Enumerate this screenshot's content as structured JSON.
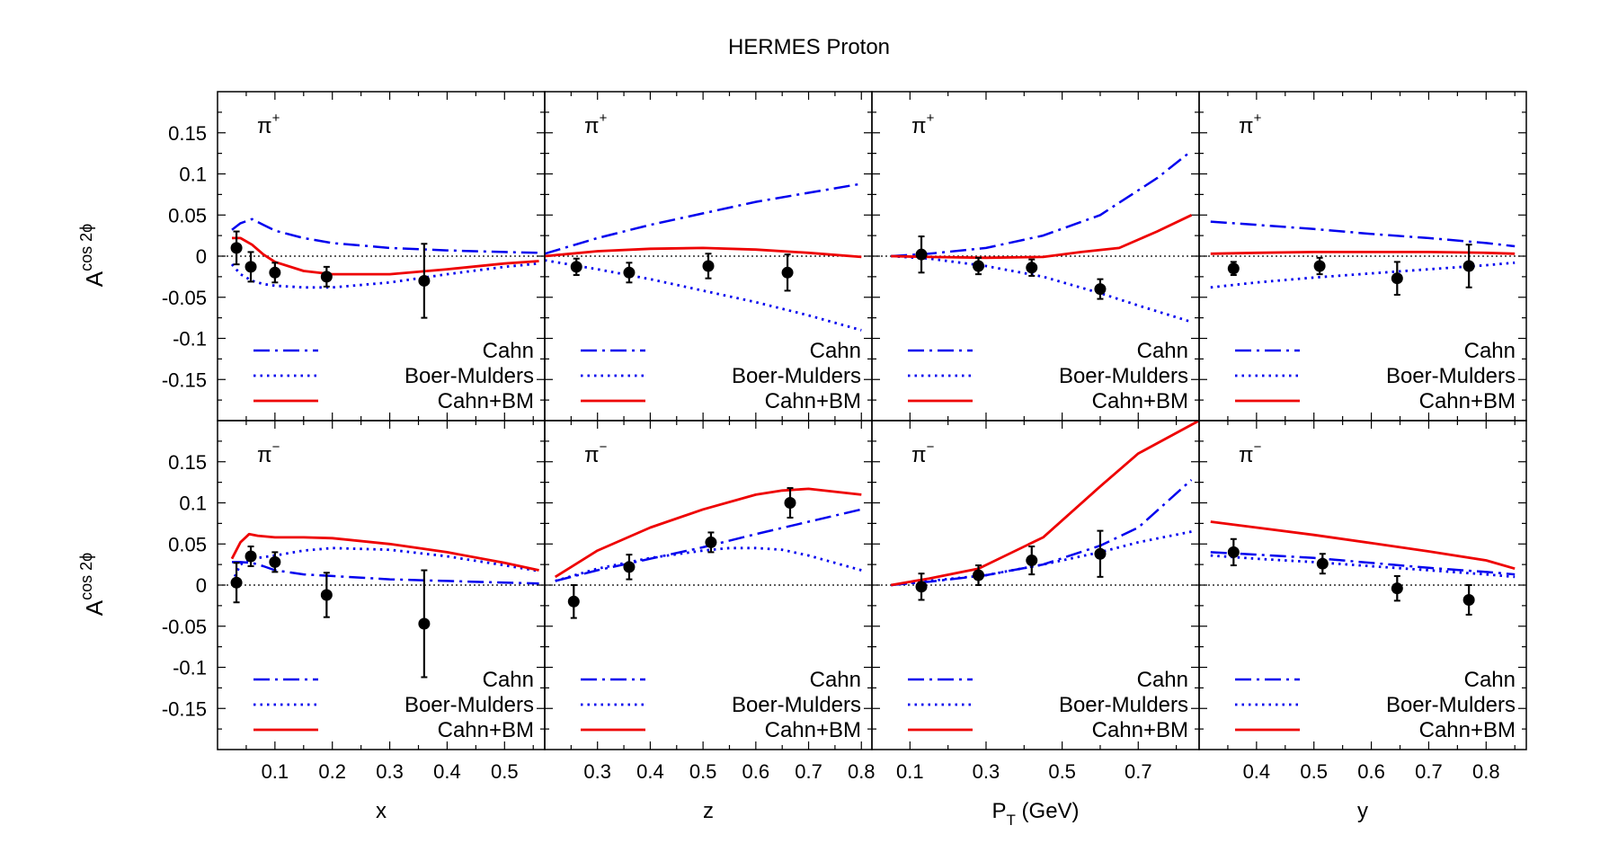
{
  "figure": {
    "title": "HERMES Proton",
    "ylabel": "A",
    "ylabel_sup": "cos 2ϕ",
    "colors": {
      "cahn": "#0000ee",
      "bm": "#0000ee",
      "total": "#ee0000",
      "data": "#000000"
    }
  },
  "legend": [
    "Cahn",
    "Boer-Mulders",
    "Cahn+BM"
  ],
  "row_labels": [
    {
      "base": "π",
      "sup": "+"
    },
    {
      "base": "π",
      "sup": "−"
    }
  ],
  "y_ticks": [
    "0.15",
    "0.1",
    "0.05",
    "0",
    "-0.05",
    "-0.1",
    "-0.15"
  ],
  "columns": [
    {
      "xlabel": "x",
      "xlabel_sub": "",
      "xlabel_suffix": "",
      "x_ticks": [
        "0.1",
        "0.2",
        "0.3",
        "0.4",
        "0.5"
      ]
    },
    {
      "xlabel": "z",
      "xlabel_sub": "",
      "xlabel_suffix": "",
      "x_ticks": [
        "0.3",
        "0.4",
        "0.5",
        "0.6",
        "0.7",
        "0.8"
      ]
    },
    {
      "xlabel": "P",
      "xlabel_sub": "T",
      "xlabel_suffix": " (GeV)",
      "x_ticks": [
        "0.1",
        "0.3",
        "0.5",
        "0.7"
      ]
    },
    {
      "xlabel": "y",
      "xlabel_sub": "",
      "xlabel_suffix": "",
      "x_ticks": [
        "0.4",
        "0.5",
        "0.6",
        "0.7",
        "0.8"
      ]
    }
  ],
  "chart_data": [
    {
      "type": "line",
      "panel": "pi+ vs x",
      "xlim": [
        0.0,
        0.57
      ],
      "ylim": [
        -0.2,
        0.2
      ],
      "x_tick_values": [
        0.1,
        0.2,
        0.3,
        0.4,
        0.5
      ],
      "series": [
        {
          "name": "Cahn",
          "style": "dashdot",
          "x": [
            0.025,
            0.04,
            0.06,
            0.08,
            0.1,
            0.15,
            0.2,
            0.3,
            0.4,
            0.5,
            0.56
          ],
          "y": [
            0.032,
            0.04,
            0.045,
            0.038,
            0.031,
            0.022,
            0.016,
            0.01,
            0.007,
            0.005,
            0.004
          ]
        },
        {
          "name": "Boer-Mulders",
          "style": "dotted",
          "x": [
            0.025,
            0.04,
            0.06,
            0.08,
            0.1,
            0.15,
            0.2,
            0.3,
            0.4,
            0.5,
            0.56
          ],
          "y": [
            -0.01,
            -0.022,
            -0.03,
            -0.034,
            -0.036,
            -0.038,
            -0.038,
            -0.032,
            -0.022,
            -0.013,
            -0.009
          ]
        },
        {
          "name": "Cahn+BM",
          "style": "solid",
          "x": [
            0.025,
            0.04,
            0.06,
            0.08,
            0.1,
            0.15,
            0.2,
            0.3,
            0.4,
            0.5,
            0.56
          ],
          "y": [
            0.022,
            0.022,
            0.014,
            0.002,
            -0.007,
            -0.018,
            -0.022,
            -0.022,
            -0.016,
            -0.009,
            -0.006
          ]
        }
      ],
      "points": {
        "x": [
          0.033,
          0.058,
          0.1,
          0.19,
          0.36
        ],
        "y": [
          0.01,
          -0.013,
          -0.02,
          -0.025,
          -0.03
        ],
        "err": [
          0.02,
          0.018,
          0.012,
          0.012,
          0.045
        ]
      }
    },
    {
      "type": "line",
      "panel": "pi+ vs z",
      "xlim": [
        0.2,
        0.82
      ],
      "ylim": [
        -0.2,
        0.2
      ],
      "x_tick_values": [
        0.3,
        0.4,
        0.5,
        0.6,
        0.7,
        0.8
      ],
      "series": [
        {
          "name": "Cahn",
          "style": "dashdot",
          "x": [
            0.2,
            0.3,
            0.4,
            0.5,
            0.6,
            0.7,
            0.8
          ],
          "y": [
            0.003,
            0.022,
            0.038,
            0.052,
            0.066,
            0.077,
            0.088
          ]
        },
        {
          "name": "Boer-Mulders",
          "style": "dotted",
          "x": [
            0.2,
            0.3,
            0.4,
            0.5,
            0.6,
            0.7,
            0.8
          ],
          "y": [
            -0.005,
            -0.016,
            -0.028,
            -0.042,
            -0.056,
            -0.072,
            -0.09
          ]
        },
        {
          "name": "Cahn+BM",
          "style": "solid",
          "x": [
            0.2,
            0.3,
            0.4,
            0.5,
            0.6,
            0.7,
            0.8
          ],
          "y": [
            0.0,
            0.006,
            0.009,
            0.01,
            0.008,
            0.004,
            -0.001
          ]
        }
      ],
      "points": {
        "x": [
          0.26,
          0.36,
          0.51,
          0.66
        ],
        "y": [
          -0.013,
          -0.02,
          -0.012,
          -0.02
        ],
        "err": [
          0.01,
          0.012,
          0.015,
          0.022
        ]
      }
    },
    {
      "type": "line",
      "panel": "pi+ vs PT",
      "xlim": [
        0.0,
        0.86
      ],
      "ylim": [
        -0.2,
        0.2
      ],
      "x_tick_values": [
        0.1,
        0.3,
        0.5,
        0.7
      ],
      "series": [
        {
          "name": "Cahn",
          "style": "dashdot",
          "x": [
            0.05,
            0.15,
            0.3,
            0.45,
            0.6,
            0.65,
            0.75,
            0.84
          ],
          "y": [
            0.0,
            0.003,
            0.01,
            0.025,
            0.05,
            0.065,
            0.095,
            0.128
          ]
        },
        {
          "name": "Boer-Mulders",
          "style": "dotted",
          "x": [
            0.05,
            0.15,
            0.3,
            0.45,
            0.6,
            0.7,
            0.84
          ],
          "y": [
            0.0,
            -0.003,
            -0.012,
            -0.025,
            -0.045,
            -0.06,
            -0.08
          ]
        },
        {
          "name": "Cahn+BM",
          "style": "solid",
          "x": [
            0.05,
            0.15,
            0.3,
            0.45,
            0.55,
            0.65,
            0.75,
            0.84
          ],
          "y": [
            0.0,
            -0.001,
            -0.002,
            -0.001,
            0.005,
            0.01,
            0.03,
            0.05
          ]
        }
      ],
      "points": {
        "x": [
          0.13,
          0.28,
          0.42,
          0.6
        ],
        "y": [
          0.002,
          -0.012,
          -0.014,
          -0.04
        ],
        "err": [
          0.022,
          0.01,
          0.01,
          0.012
        ]
      }
    },
    {
      "type": "line",
      "panel": "pi+ vs y",
      "xlim": [
        0.3,
        0.87
      ],
      "ylim": [
        -0.2,
        0.2
      ],
      "x_tick_values": [
        0.4,
        0.5,
        0.6,
        0.7,
        0.8
      ],
      "series": [
        {
          "name": "Cahn",
          "style": "dashdot",
          "x": [
            0.32,
            0.4,
            0.5,
            0.6,
            0.7,
            0.8,
            0.85
          ],
          "y": [
            0.042,
            0.038,
            0.033,
            0.027,
            0.022,
            0.016,
            0.012
          ]
        },
        {
          "name": "Boer-Mulders",
          "style": "dotted",
          "x": [
            0.32,
            0.4,
            0.5,
            0.6,
            0.7,
            0.8,
            0.85
          ],
          "y": [
            -0.038,
            -0.032,
            -0.026,
            -0.021,
            -0.016,
            -0.011,
            -0.008
          ]
        },
        {
          "name": "Cahn+BM",
          "style": "solid",
          "x": [
            0.32,
            0.4,
            0.5,
            0.6,
            0.7,
            0.8,
            0.85
          ],
          "y": [
            0.003,
            0.004,
            0.005,
            0.005,
            0.005,
            0.004,
            0.003
          ]
        }
      ],
      "points": {
        "x": [
          0.36,
          0.51,
          0.645,
          0.77
        ],
        "y": [
          -0.015,
          -0.012,
          -0.027,
          -0.012
        ],
        "err": [
          0.008,
          0.01,
          0.02,
          0.026
        ]
      }
    },
    {
      "type": "line",
      "panel": "pi- vs x",
      "xlim": [
        0.0,
        0.57
      ],
      "ylim": [
        -0.2,
        0.2
      ],
      "x_tick_values": [
        0.1,
        0.2,
        0.3,
        0.4,
        0.5
      ],
      "series": [
        {
          "name": "Cahn",
          "style": "dashdot",
          "x": [
            0.025,
            0.04,
            0.06,
            0.08,
            0.1,
            0.15,
            0.2,
            0.3,
            0.4,
            0.5,
            0.56
          ],
          "y": [
            0.028,
            0.028,
            0.027,
            0.023,
            0.018,
            0.013,
            0.011,
            0.007,
            0.005,
            0.003,
            0.002
          ]
        },
        {
          "name": "Boer-Mulders",
          "style": "dotted",
          "x": [
            0.025,
            0.04,
            0.06,
            0.08,
            0.1,
            0.15,
            0.2,
            0.3,
            0.4,
            0.5,
            0.56
          ],
          "y": [
            0.003,
            0.025,
            0.032,
            0.034,
            0.036,
            0.042,
            0.045,
            0.043,
            0.035,
            0.024,
            0.017
          ]
        },
        {
          "name": "Cahn+BM",
          "style": "solid",
          "x": [
            0.025,
            0.04,
            0.055,
            0.07,
            0.1,
            0.15,
            0.2,
            0.3,
            0.4,
            0.5,
            0.56
          ],
          "y": [
            0.032,
            0.052,
            0.062,
            0.06,
            0.058,
            0.058,
            0.057,
            0.05,
            0.04,
            0.027,
            0.018
          ]
        }
      ],
      "points": {
        "x": [
          0.033,
          0.058,
          0.1,
          0.19,
          0.36
        ],
        "y": [
          0.003,
          0.035,
          0.028,
          -0.012,
          -0.047
        ],
        "err": [
          0.024,
          0.012,
          0.012,
          0.027,
          0.065
        ]
      }
    },
    {
      "type": "line",
      "panel": "pi- vs z",
      "xlim": [
        0.2,
        0.82
      ],
      "ylim": [
        -0.2,
        0.2
      ],
      "x_tick_values": [
        0.3,
        0.4,
        0.5,
        0.6,
        0.7,
        0.8
      ],
      "series": [
        {
          "name": "Cahn",
          "style": "dashdot",
          "x": [
            0.22,
            0.3,
            0.4,
            0.5,
            0.6,
            0.7,
            0.8
          ],
          "y": [
            0.005,
            0.018,
            0.032,
            0.046,
            0.062,
            0.077,
            0.092
          ]
        },
        {
          "name": "Boer-Mulders",
          "style": "dotted",
          "x": [
            0.22,
            0.3,
            0.4,
            0.5,
            0.55,
            0.6,
            0.65,
            0.7,
            0.8
          ],
          "y": [
            0.005,
            0.02,
            0.033,
            0.042,
            0.045,
            0.045,
            0.043,
            0.036,
            0.018
          ]
        },
        {
          "name": "Cahn+BM",
          "style": "solid",
          "x": [
            0.22,
            0.3,
            0.4,
            0.5,
            0.6,
            0.65,
            0.7,
            0.8
          ],
          "y": [
            0.01,
            0.042,
            0.07,
            0.092,
            0.11,
            0.115,
            0.117,
            0.11
          ]
        }
      ],
      "points": {
        "x": [
          0.255,
          0.36,
          0.515,
          0.665
        ],
        "y": [
          -0.02,
          0.022,
          0.052,
          0.1
        ],
        "err": [
          0.02,
          0.015,
          0.012,
          0.018
        ]
      }
    },
    {
      "type": "line",
      "panel": "pi- vs PT",
      "xlim": [
        0.0,
        0.86
      ],
      "ylim": [
        -0.2,
        0.2
      ],
      "x_tick_values": [
        0.1,
        0.3,
        0.5,
        0.7
      ],
      "series": [
        {
          "name": "Cahn",
          "style": "dashdot",
          "x": [
            0.05,
            0.15,
            0.3,
            0.45,
            0.6,
            0.7,
            0.84
          ],
          "y": [
            0.0,
            0.004,
            0.012,
            0.025,
            0.048,
            0.07,
            0.128
          ]
        },
        {
          "name": "Boer-Mulders",
          "style": "dotted",
          "x": [
            0.05,
            0.15,
            0.3,
            0.45,
            0.6,
            0.7,
            0.84
          ],
          "y": [
            0.0,
            0.005,
            0.012,
            0.025,
            0.04,
            0.052,
            0.065
          ]
        },
        {
          "name": "Cahn+BM",
          "style": "solid",
          "x": [
            0.05,
            0.15,
            0.28,
            0.45,
            0.6,
            0.7,
            0.86
          ],
          "y": [
            0.0,
            0.008,
            0.02,
            0.058,
            0.12,
            0.16,
            0.2
          ]
        }
      ],
      "points": {
        "x": [
          0.13,
          0.28,
          0.42,
          0.6
        ],
        "y": [
          -0.002,
          0.012,
          0.03,
          0.038
        ],
        "err": [
          0.016,
          0.012,
          0.017,
          0.028
        ]
      }
    },
    {
      "type": "line",
      "panel": "pi- vs y",
      "xlim": [
        0.3,
        0.87
      ],
      "ylim": [
        -0.2,
        0.2
      ],
      "x_tick_values": [
        0.4,
        0.5,
        0.6,
        0.7,
        0.8
      ],
      "series": [
        {
          "name": "Cahn",
          "style": "dashdot",
          "x": [
            0.32,
            0.4,
            0.5,
            0.6,
            0.7,
            0.8,
            0.85
          ],
          "y": [
            0.04,
            0.037,
            0.033,
            0.027,
            0.021,
            0.016,
            0.013
          ]
        },
        {
          "name": "Boer-Mulders",
          "style": "dotted",
          "x": [
            0.32,
            0.4,
            0.5,
            0.6,
            0.7,
            0.8,
            0.85
          ],
          "y": [
            0.036,
            0.032,
            0.028,
            0.023,
            0.018,
            0.013,
            0.01
          ]
        },
        {
          "name": "Cahn+BM",
          "style": "solid",
          "x": [
            0.32,
            0.4,
            0.5,
            0.6,
            0.7,
            0.8,
            0.85
          ],
          "y": [
            0.077,
            0.07,
            0.061,
            0.051,
            0.041,
            0.03,
            0.02
          ]
        }
      ],
      "points": {
        "x": [
          0.36,
          0.515,
          0.645,
          0.77
        ],
        "y": [
          0.04,
          0.026,
          -0.004,
          -0.018
        ],
        "err": [
          0.016,
          0.012,
          0.015,
          0.018
        ]
      }
    }
  ]
}
